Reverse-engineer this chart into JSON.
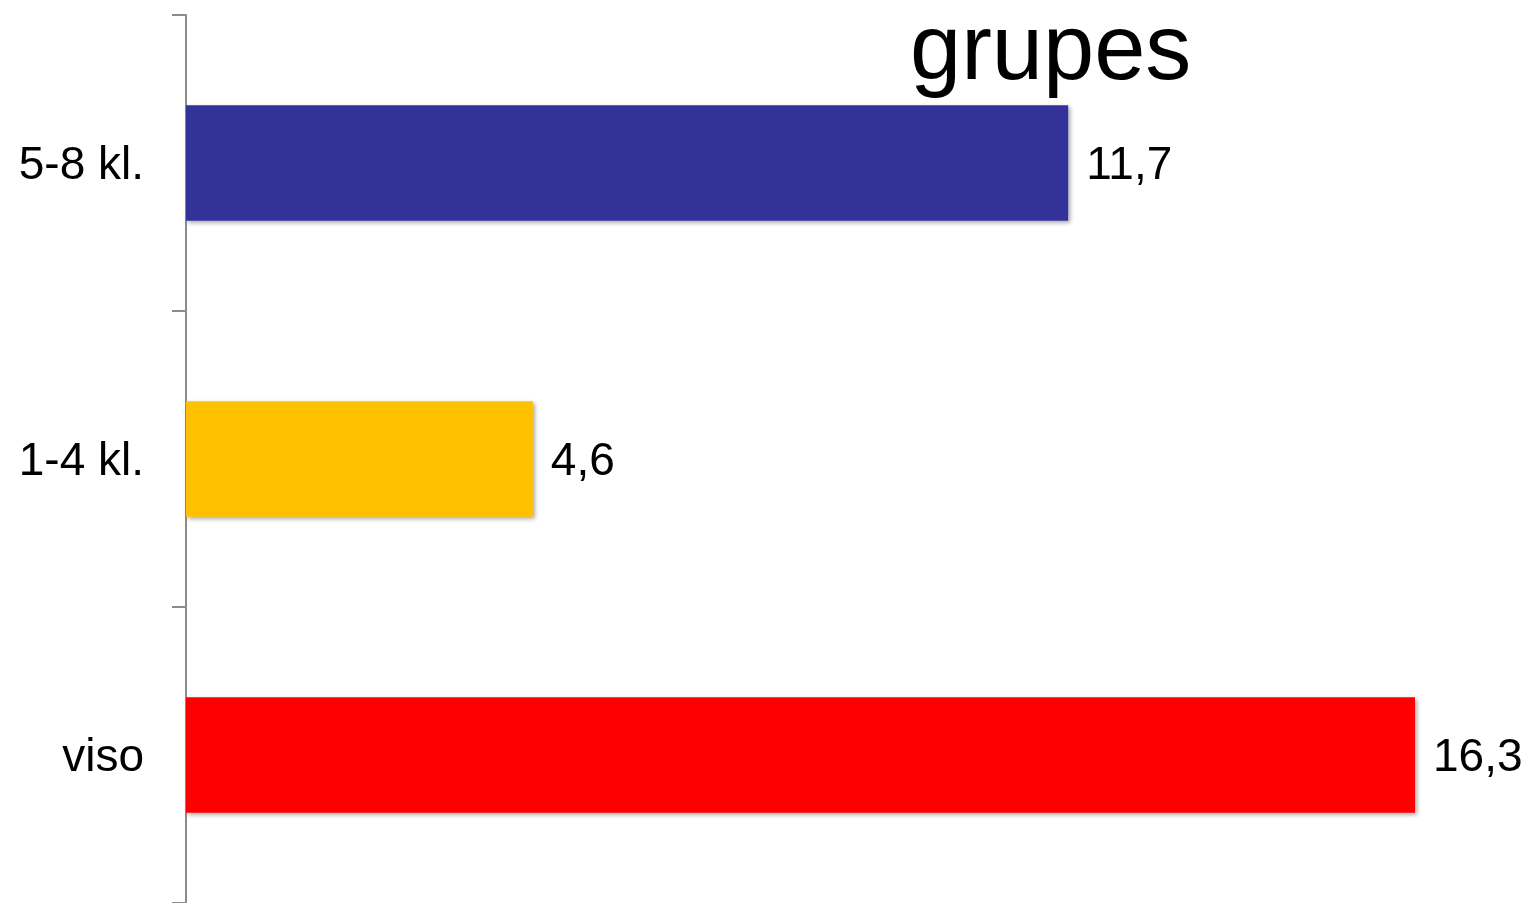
{
  "chart_data": {
    "type": "bar",
    "orientation": "horizontal",
    "title": "grupes",
    "categories": [
      "5-8 kl.",
      "1-4 kl.",
      "viso"
    ],
    "values": [
      11.7,
      4.6,
      16.3
    ],
    "colors": [
      "#333399",
      "#ffc000",
      "#ff0000"
    ],
    "value_labels": [
      "11,7",
      "4,6",
      "16,3"
    ],
    "tick_labels": "y"
  }
}
